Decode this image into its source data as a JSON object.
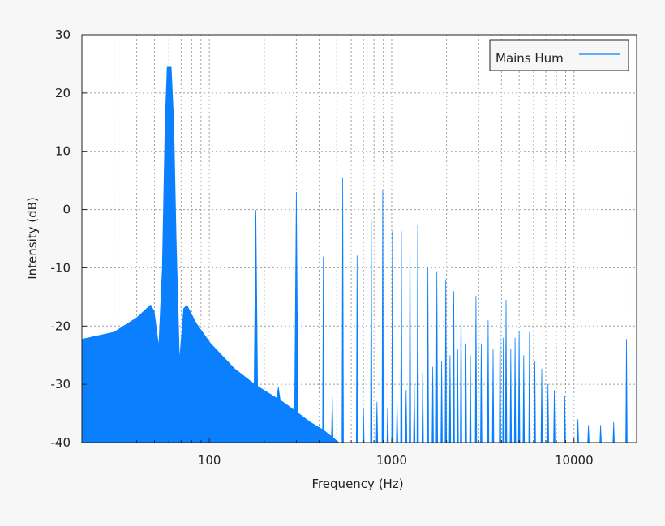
{
  "chart_data": {
    "type": "area",
    "title": "",
    "xlabel": "Frequency (Hz)",
    "ylabel": "Intensity (dB)",
    "xscale": "log",
    "xlim": [
      20,
      22050
    ],
    "ylim": [
      -40,
      30
    ],
    "xticks": [
      100,
      1000,
      10000
    ],
    "xtick_labels": [
      "100",
      "1000",
      "10000"
    ],
    "yticks": [
      -40,
      -30,
      -20,
      -10,
      0,
      10,
      20,
      30
    ],
    "ytick_labels": [
      "-40",
      "-30",
      "-20",
      "-10",
      "0",
      "10",
      "20",
      "30"
    ],
    "grid": true,
    "legend": {
      "placement": "top-right",
      "entries": [
        "Mains Hum"
      ]
    },
    "series": [
      {
        "name": "Mains Hum",
        "color": "#0a80ff",
        "envelope": [
          [
            20,
            -22.2
          ],
          [
            30,
            -21
          ],
          [
            40,
            -18.5
          ],
          [
            47.7,
            -16.3
          ],
          [
            50,
            -17.5
          ],
          [
            52.7,
            -23
          ],
          [
            55,
            -10
          ],
          [
            57,
            15
          ],
          [
            58.5,
            24.5
          ],
          [
            62,
            24.5
          ],
          [
            64,
            15
          ],
          [
            66,
            -5
          ],
          [
            68.7,
            -25
          ],
          [
            72,
            -17
          ],
          [
            75.3,
            -16.3
          ],
          [
            85,
            -19.5
          ],
          [
            102,
            -23
          ],
          [
            138,
            -27.3
          ],
          [
            178,
            -30
          ],
          [
            254,
            -33
          ],
          [
            311,
            -35
          ],
          [
            360,
            -36.5
          ],
          [
            423,
            -37.8
          ],
          [
            517,
            -40
          ],
          [
            22050,
            -40
          ]
        ],
        "peaks": [
          [
            180,
            -0.1
          ],
          [
            239,
            -30.5
          ],
          [
            300,
            3
          ],
          [
            422,
            -8.1
          ],
          [
            472,
            -32
          ],
          [
            539,
            5.4
          ],
          [
            646,
            -7.9
          ],
          [
            700,
            -34
          ],
          [
            773,
            -1.6
          ],
          [
            830,
            -33
          ],
          [
            893,
            3.3
          ],
          [
            950,
            -34
          ],
          [
            1010,
            -3.7
          ],
          [
            1070,
            -33
          ],
          [
            1130,
            -3.7
          ],
          [
            1200,
            -31
          ],
          [
            1260,
            -2.3
          ],
          [
            1330,
            -30
          ],
          [
            1390,
            -2.7
          ],
          [
            1480,
            -28
          ],
          [
            1580,
            -10
          ],
          [
            1680,
            -27
          ],
          [
            1770,
            -10.6
          ],
          [
            1880,
            -26
          ],
          [
            1980,
            -12
          ],
          [
            2090,
            -25
          ],
          [
            2190,
            -14
          ],
          [
            2300,
            -24
          ],
          [
            2400,
            -14.8
          ],
          [
            2550,
            -23
          ],
          [
            2700,
            -25
          ],
          [
            2900,
            -14.8
          ],
          [
            3100,
            -23
          ],
          [
            3380,
            -19
          ],
          [
            3600,
            -24
          ],
          [
            3930,
            -17
          ],
          [
            4100,
            -22
          ],
          [
            4240,
            -15.5
          ],
          [
            4500,
            -24
          ],
          [
            4750,
            -22
          ],
          [
            5000,
            -20.8
          ],
          [
            5300,
            -25
          ],
          [
            5700,
            -21
          ],
          [
            6100,
            -26
          ],
          [
            6650,
            -27.3
          ],
          [
            7200,
            -30
          ],
          [
            7800,
            -31
          ],
          [
            8900,
            -32
          ],
          [
            10500,
            -36
          ],
          [
            12000,
            -37
          ],
          [
            14000,
            -37
          ],
          [
            16500,
            -36.5
          ],
          [
            19400,
            -22.2
          ]
        ]
      }
    ]
  }
}
